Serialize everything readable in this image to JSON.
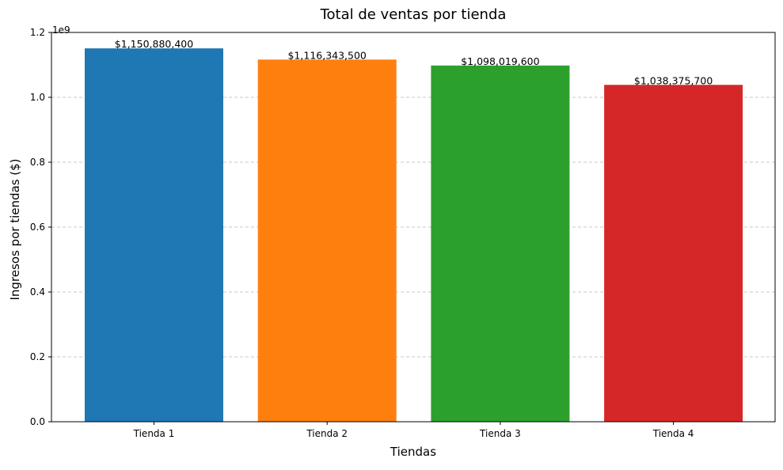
{
  "chart_data": {
    "type": "bar",
    "title": "Total de ventas por tienda",
    "xlabel": "Tiendas",
    "ylabel": "Ingresos por tiendas ($)",
    "y_offset_text": "1e9",
    "y_scale": 1000000000,
    "categories": [
      "Tienda 1",
      "Tienda 2",
      "Tienda 3",
      "Tienda 4"
    ],
    "values": [
      1150880400,
      1116343500,
      1098019600,
      1038375700
    ],
    "value_labels": [
      "$1,150,880,400",
      "$1,116,343,500",
      "$1,098,019,600",
      "$1,038,375,700"
    ],
    "colors": [
      "#1f77b4",
      "#ff7f0e",
      "#2ca02c",
      "#d62728"
    ],
    "ylim": [
      0,
      1.2
    ],
    "yticks": [
      0.0,
      0.2,
      0.4,
      0.6,
      0.8,
      1.0,
      1.2
    ],
    "ytick_labels": [
      "0.0",
      "0.2",
      "0.4",
      "0.6",
      "0.8",
      "1.0",
      "1.2"
    ],
    "grid": {
      "axis": "y",
      "style": "dashed",
      "color": "#c8c8c8"
    }
  }
}
